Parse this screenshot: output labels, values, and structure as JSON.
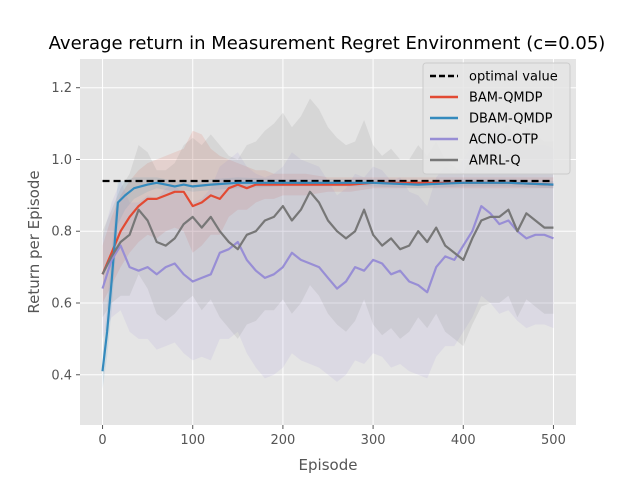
{
  "chart_data": {
    "type": "line",
    "title": "Average return in Measurement Regret Environment (c=0.05)",
    "xlabel": "Episode",
    "ylabel": "Return per Episode",
    "xlim": [
      -25,
      525
    ],
    "ylim": [
      0.26,
      1.28
    ],
    "xticks": [
      0,
      100,
      200,
      300,
      400,
      500
    ],
    "yticks": [
      0.4,
      0.6,
      0.8,
      1.0,
      1.2
    ],
    "ytick_labels": [
      "0.4",
      "0.6",
      "0.8",
      "1.0",
      "1.2"
    ],
    "grid": true,
    "legend_position": "top-right",
    "reference_line": {
      "name": "optimal value",
      "value": 0.94,
      "color": "#000000",
      "style": "dashed"
    },
    "series": [
      {
        "name": "BAM-QMDP",
        "color": "#E24A33",
        "x": [
          0,
          10,
          20,
          30,
          40,
          50,
          60,
          70,
          80,
          90,
          100,
          110,
          120,
          130,
          140,
          150,
          160,
          170,
          180,
          190,
          200,
          225,
          250,
          275,
          300,
          350,
          400,
          450,
          500
        ],
        "y": [
          0.68,
          0.74,
          0.8,
          0.84,
          0.87,
          0.89,
          0.89,
          0.9,
          0.91,
          0.91,
          0.87,
          0.88,
          0.9,
          0.89,
          0.92,
          0.93,
          0.92,
          0.93,
          0.93,
          0.93,
          0.93,
          0.93,
          0.93,
          0.93,
          0.935,
          0.935,
          0.935,
          0.935,
          0.93
        ],
        "lower": [
          0.6,
          0.65,
          0.7,
          0.74,
          0.77,
          0.79,
          0.78,
          0.8,
          0.81,
          0.8,
          0.74,
          0.76,
          0.79,
          0.79,
          0.84,
          0.86,
          0.86,
          0.88,
          0.89,
          0.89,
          0.9,
          0.9,
          0.91,
          0.91,
          0.92,
          0.92,
          0.92,
          0.92,
          0.92
        ],
        "upper": [
          0.76,
          0.84,
          0.9,
          0.94,
          0.97,
          0.99,
          1.0,
          1.01,
          1.02,
          1.03,
          1.08,
          1.07,
          1.03,
          1.01,
          1.0,
          0.99,
          0.98,
          0.97,
          0.97,
          0.96,
          0.96,
          0.96,
          0.95,
          0.95,
          0.95,
          0.95,
          0.95,
          0.95,
          0.95
        ]
      },
      {
        "name": "DBAM-QMDP",
        "color": "#348ABD",
        "x": [
          0,
          5,
          10,
          17,
          25,
          35,
          50,
          60,
          70,
          80,
          90,
          100,
          120,
          150,
          200,
          250,
          300,
          350,
          400,
          450,
          500
        ],
        "y": [
          0.41,
          0.52,
          0.66,
          0.88,
          0.9,
          0.92,
          0.93,
          0.935,
          0.93,
          0.925,
          0.93,
          0.925,
          0.93,
          0.935,
          0.935,
          0.935,
          0.935,
          0.93,
          0.935,
          0.935,
          0.93
        ],
        "lower": [
          0.36,
          0.45,
          0.58,
          0.82,
          0.86,
          0.89,
          0.91,
          0.92,
          0.915,
          0.91,
          0.915,
          0.91,
          0.915,
          0.92,
          0.925,
          0.925,
          0.925,
          0.92,
          0.925,
          0.925,
          0.92
        ],
        "upper": [
          0.46,
          0.59,
          0.74,
          0.94,
          0.94,
          0.95,
          0.95,
          0.95,
          0.945,
          0.94,
          0.945,
          0.94,
          0.945,
          0.95,
          0.945,
          0.945,
          0.945,
          0.94,
          0.945,
          0.945,
          0.94
        ]
      },
      {
        "name": "ACNO-OTP",
        "color": "#988ED5",
        "x": [
          0,
          10,
          20,
          30,
          40,
          50,
          60,
          70,
          80,
          90,
          100,
          110,
          120,
          130,
          140,
          150,
          160,
          170,
          180,
          190,
          200,
          210,
          220,
          230,
          240,
          250,
          260,
          270,
          280,
          290,
          300,
          310,
          320,
          330,
          340,
          350,
          360,
          370,
          380,
          390,
          400,
          410,
          420,
          430,
          440,
          450,
          460,
          470,
          480,
          490,
          500
        ],
        "y": [
          0.64,
          0.72,
          0.76,
          0.7,
          0.69,
          0.7,
          0.68,
          0.7,
          0.71,
          0.68,
          0.66,
          0.67,
          0.68,
          0.74,
          0.75,
          0.77,
          0.72,
          0.69,
          0.67,
          0.68,
          0.7,
          0.74,
          0.72,
          0.71,
          0.7,
          0.67,
          0.64,
          0.66,
          0.7,
          0.69,
          0.72,
          0.71,
          0.68,
          0.69,
          0.66,
          0.65,
          0.63,
          0.7,
          0.73,
          0.72,
          0.76,
          0.8,
          0.87,
          0.85,
          0.82,
          0.83,
          0.8,
          0.78,
          0.79,
          0.79,
          0.78
        ],
        "lower": [
          0.5,
          0.56,
          0.58,
          0.52,
          0.5,
          0.5,
          0.47,
          0.48,
          0.49,
          0.46,
          0.44,
          0.45,
          0.44,
          0.5,
          0.5,
          0.52,
          0.46,
          0.42,
          0.39,
          0.4,
          0.42,
          0.46,
          0.44,
          0.43,
          0.42,
          0.4,
          0.38,
          0.4,
          0.44,
          0.43,
          0.46,
          0.45,
          0.42,
          0.43,
          0.41,
          0.4,
          0.39,
          0.45,
          0.48,
          0.48,
          0.52,
          0.56,
          0.62,
          0.6,
          0.57,
          0.58,
          0.55,
          0.53,
          0.54,
          0.54,
          0.53
        ],
        "upper": [
          0.78,
          0.88,
          0.94,
          0.88,
          0.88,
          0.9,
          0.89,
          0.92,
          0.93,
          0.9,
          0.88,
          0.89,
          0.92,
          0.98,
          1.0,
          1.02,
          0.98,
          0.96,
          0.95,
          0.96,
          0.98,
          1.02,
          1.0,
          0.99,
          0.98,
          0.94,
          0.9,
          0.92,
          0.96,
          0.95,
          0.98,
          0.97,
          0.94,
          0.95,
          0.91,
          0.9,
          0.87,
          0.95,
          0.98,
          0.96,
          1.0,
          1.04,
          1.12,
          1.1,
          1.07,
          1.08,
          1.05,
          1.03,
          1.04,
          1.04,
          1.03
        ]
      },
      {
        "name": "AMRL-Q",
        "color": "#777777",
        "x": [
          0,
          10,
          20,
          30,
          40,
          50,
          60,
          70,
          80,
          90,
          100,
          110,
          120,
          130,
          140,
          150,
          160,
          170,
          180,
          190,
          200,
          210,
          220,
          230,
          240,
          250,
          260,
          270,
          280,
          290,
          300,
          310,
          320,
          330,
          340,
          350,
          360,
          370,
          380,
          390,
          400,
          410,
          420,
          430,
          440,
          450,
          460,
          470,
          480,
          490,
          500
        ],
        "y": [
          0.68,
          0.73,
          0.77,
          0.79,
          0.86,
          0.83,
          0.77,
          0.76,
          0.78,
          0.82,
          0.84,
          0.81,
          0.84,
          0.8,
          0.77,
          0.75,
          0.79,
          0.8,
          0.83,
          0.84,
          0.87,
          0.83,
          0.86,
          0.91,
          0.88,
          0.83,
          0.8,
          0.78,
          0.8,
          0.86,
          0.79,
          0.76,
          0.78,
          0.75,
          0.76,
          0.8,
          0.77,
          0.81,
          0.76,
          0.74,
          0.72,
          0.78,
          0.83,
          0.84,
          0.84,
          0.86,
          0.8,
          0.85,
          0.83,
          0.81,
          0.81
        ],
        "lower": [
          0.56,
          0.6,
          0.62,
          0.62,
          0.68,
          0.64,
          0.57,
          0.55,
          0.57,
          0.6,
          0.62,
          0.58,
          0.61,
          0.56,
          0.53,
          0.5,
          0.54,
          0.55,
          0.58,
          0.58,
          0.61,
          0.57,
          0.6,
          0.65,
          0.62,
          0.57,
          0.54,
          0.52,
          0.55,
          0.61,
          0.54,
          0.51,
          0.53,
          0.5,
          0.52,
          0.56,
          0.53,
          0.57,
          0.52,
          0.5,
          0.48,
          0.54,
          0.59,
          0.6,
          0.6,
          0.62,
          0.56,
          0.61,
          0.59,
          0.57,
          0.57
        ],
        "upper": [
          0.8,
          0.86,
          0.92,
          0.96,
          1.04,
          1.02,
          0.97,
          0.97,
          0.99,
          1.04,
          1.06,
          1.04,
          1.07,
          1.04,
          1.01,
          1.0,
          1.04,
          1.05,
          1.08,
          1.1,
          1.13,
          1.09,
          1.12,
          1.17,
          1.14,
          1.09,
          1.06,
          1.04,
          1.05,
          1.11,
          1.04,
          1.01,
          1.03,
          1.0,
          1.0,
          1.04,
          1.01,
          1.05,
          1.0,
          0.98,
          0.96,
          1.02,
          1.07,
          1.08,
          1.08,
          1.1,
          1.04,
          1.09,
          1.07,
          1.05,
          1.05
        ]
      }
    ]
  }
}
